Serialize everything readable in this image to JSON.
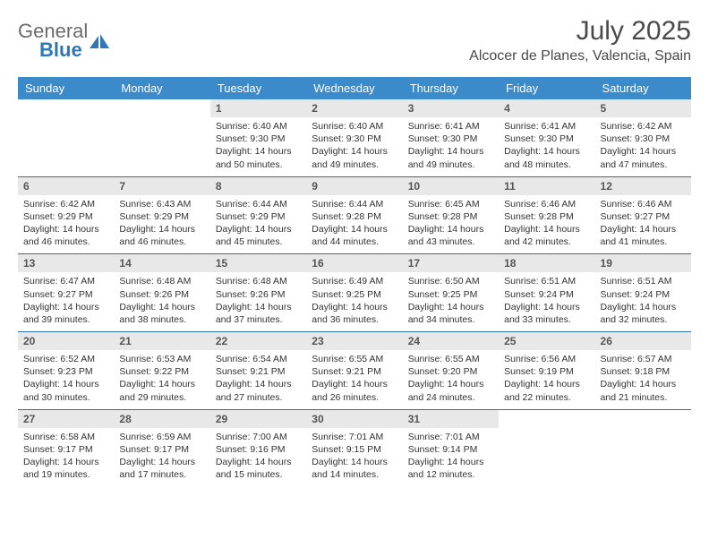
{
  "brand": {
    "name_line1": "General",
    "name_line2": "Blue",
    "text_color": "#6b6b6b",
    "accent_color": "#2e77b8"
  },
  "title": "July 2025",
  "location": "Alcocer de Planes, Valencia, Spain",
  "style": {
    "header_bg": "#3b8bca",
    "header_text": "#ffffff",
    "day_num_bg": "#e8e8e8",
    "row_border": "#2f6fa8",
    "title_fontsize": 30,
    "location_fontsize": 16,
    "dayhead_fontsize": 13,
    "body_fontsize": 10.5
  },
  "weekdays": [
    "Sunday",
    "Monday",
    "Tuesday",
    "Wednesday",
    "Thursday",
    "Friday",
    "Saturday"
  ],
  "grid": [
    [
      {
        "n": "",
        "sr": "",
        "ss": "",
        "dl": ""
      },
      {
        "n": "",
        "sr": "",
        "ss": "",
        "dl": ""
      },
      {
        "n": "1",
        "sr": "6:40 AM",
        "ss": "9:30 PM",
        "dl": "14 hours and 50 minutes."
      },
      {
        "n": "2",
        "sr": "6:40 AM",
        "ss": "9:30 PM",
        "dl": "14 hours and 49 minutes."
      },
      {
        "n": "3",
        "sr": "6:41 AM",
        "ss": "9:30 PM",
        "dl": "14 hours and 49 minutes."
      },
      {
        "n": "4",
        "sr": "6:41 AM",
        "ss": "9:30 PM",
        "dl": "14 hours and 48 minutes."
      },
      {
        "n": "5",
        "sr": "6:42 AM",
        "ss": "9:30 PM",
        "dl": "14 hours and 47 minutes."
      }
    ],
    [
      {
        "n": "6",
        "sr": "6:42 AM",
        "ss": "9:29 PM",
        "dl": "14 hours and 46 minutes."
      },
      {
        "n": "7",
        "sr": "6:43 AM",
        "ss": "9:29 PM",
        "dl": "14 hours and 46 minutes."
      },
      {
        "n": "8",
        "sr": "6:44 AM",
        "ss": "9:29 PM",
        "dl": "14 hours and 45 minutes."
      },
      {
        "n": "9",
        "sr": "6:44 AM",
        "ss": "9:28 PM",
        "dl": "14 hours and 44 minutes."
      },
      {
        "n": "10",
        "sr": "6:45 AM",
        "ss": "9:28 PM",
        "dl": "14 hours and 43 minutes."
      },
      {
        "n": "11",
        "sr": "6:46 AM",
        "ss": "9:28 PM",
        "dl": "14 hours and 42 minutes."
      },
      {
        "n": "12",
        "sr": "6:46 AM",
        "ss": "9:27 PM",
        "dl": "14 hours and 41 minutes."
      }
    ],
    [
      {
        "n": "13",
        "sr": "6:47 AM",
        "ss": "9:27 PM",
        "dl": "14 hours and 39 minutes."
      },
      {
        "n": "14",
        "sr": "6:48 AM",
        "ss": "9:26 PM",
        "dl": "14 hours and 38 minutes."
      },
      {
        "n": "15",
        "sr": "6:48 AM",
        "ss": "9:26 PM",
        "dl": "14 hours and 37 minutes."
      },
      {
        "n": "16",
        "sr": "6:49 AM",
        "ss": "9:25 PM",
        "dl": "14 hours and 36 minutes."
      },
      {
        "n": "17",
        "sr": "6:50 AM",
        "ss": "9:25 PM",
        "dl": "14 hours and 34 minutes."
      },
      {
        "n": "18",
        "sr": "6:51 AM",
        "ss": "9:24 PM",
        "dl": "14 hours and 33 minutes."
      },
      {
        "n": "19",
        "sr": "6:51 AM",
        "ss": "9:24 PM",
        "dl": "14 hours and 32 minutes."
      }
    ],
    [
      {
        "n": "20",
        "sr": "6:52 AM",
        "ss": "9:23 PM",
        "dl": "14 hours and 30 minutes."
      },
      {
        "n": "21",
        "sr": "6:53 AM",
        "ss": "9:22 PM",
        "dl": "14 hours and 29 minutes."
      },
      {
        "n": "22",
        "sr": "6:54 AM",
        "ss": "9:21 PM",
        "dl": "14 hours and 27 minutes."
      },
      {
        "n": "23",
        "sr": "6:55 AM",
        "ss": "9:21 PM",
        "dl": "14 hours and 26 minutes."
      },
      {
        "n": "24",
        "sr": "6:55 AM",
        "ss": "9:20 PM",
        "dl": "14 hours and 24 minutes."
      },
      {
        "n": "25",
        "sr": "6:56 AM",
        "ss": "9:19 PM",
        "dl": "14 hours and 22 minutes."
      },
      {
        "n": "26",
        "sr": "6:57 AM",
        "ss": "9:18 PM",
        "dl": "14 hours and 21 minutes."
      }
    ],
    [
      {
        "n": "27",
        "sr": "6:58 AM",
        "ss": "9:17 PM",
        "dl": "14 hours and 19 minutes."
      },
      {
        "n": "28",
        "sr": "6:59 AM",
        "ss": "9:17 PM",
        "dl": "14 hours and 17 minutes."
      },
      {
        "n": "29",
        "sr": "7:00 AM",
        "ss": "9:16 PM",
        "dl": "14 hours and 15 minutes."
      },
      {
        "n": "30",
        "sr": "7:01 AM",
        "ss": "9:15 PM",
        "dl": "14 hours and 14 minutes."
      },
      {
        "n": "31",
        "sr": "7:01 AM",
        "ss": "9:14 PM",
        "dl": "14 hours and 12 minutes."
      },
      {
        "n": "",
        "sr": "",
        "ss": "",
        "dl": ""
      },
      {
        "n": "",
        "sr": "",
        "ss": "",
        "dl": ""
      }
    ]
  ],
  "labels": {
    "sunrise": "Sunrise:",
    "sunset": "Sunset:",
    "daylight": "Daylight:"
  }
}
